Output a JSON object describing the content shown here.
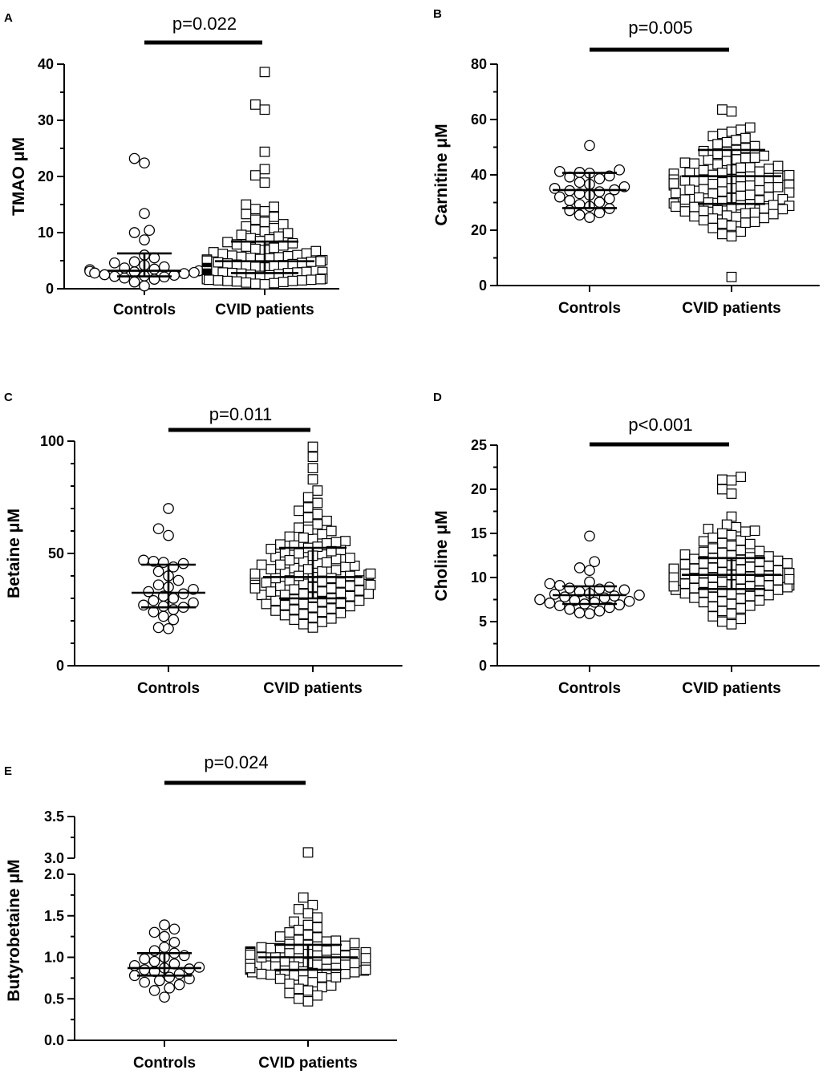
{
  "chart_data": [
    {
      "panel": "A",
      "type": "scatter",
      "title": "",
      "xlabel": "",
      "ylabel": "TMAO μM",
      "categories": [
        "Controls",
        "CVID patients"
      ],
      "ylim": [
        0,
        40
      ],
      "yticks": [
        0,
        10,
        20,
        30,
        40
      ],
      "ytick_labels": [
        "0",
        "10",
        "20",
        "30",
        "40"
      ],
      "p_value": "p=0.022",
      "series": [
        {
          "name": "Controls",
          "marker": "circle",
          "summary": {
            "median": 3.2,
            "q1": 2.2,
            "q3": 6.3
          },
          "values": [
            23.2,
            22.4,
            13.4,
            10.4,
            10.0,
            8.7,
            6.0,
            5.5,
            4.8,
            4.6,
            4.2,
            3.9,
            3.7,
            3.5,
            3.4,
            3.2,
            3.1,
            3.0,
            2.9,
            2.8,
            2.7,
            2.5,
            2.4,
            2.3,
            2.2,
            2.1,
            1.9,
            1.7,
            1.2,
            0.5
          ]
        },
        {
          "name": "CVID patients",
          "marker": "square",
          "summary": {
            "median": 4.9,
            "q1": 2.8,
            "q3": 8.4
          },
          "values": [
            38.6,
            32.8,
            31.9,
            24.4,
            21.3,
            20.2,
            18.9,
            15.0,
            14.6,
            14.2,
            13.8,
            13.3,
            12.8,
            12.3,
            11.9,
            11.5,
            11.1,
            10.8,
            10.5,
            10.2,
            9.9,
            9.6,
            9.3,
            9.0,
            8.8,
            8.5,
            8.3,
            8.1,
            7.9,
            7.7,
            7.5,
            7.3,
            7.1,
            6.9,
            6.7,
            6.5,
            6.3,
            6.2,
            6.0,
            5.9,
            5.8,
            5.7,
            5.6,
            5.5,
            5.4,
            5.3,
            5.2,
            5.1,
            5.0,
            4.9,
            4.8,
            4.7,
            4.6,
            4.5,
            4.4,
            4.3,
            4.2,
            4.1,
            4.0,
            3.9,
            3.8,
            3.7,
            3.6,
            3.5,
            3.4,
            3.3,
            3.2,
            3.1,
            3.0,
            3.0,
            2.9,
            2.9,
            2.8,
            2.8,
            2.7,
            2.7,
            2.6,
            2.6,
            2.5,
            2.5,
            2.4,
            2.4,
            2.3,
            2.3,
            2.2,
            2.2,
            2.1,
            2.1,
            2.0,
            2.0,
            1.9,
            1.9,
            1.8,
            1.8,
            1.7,
            1.7,
            1.6,
            1.6,
            1.5,
            1.5,
            1.4,
            1.4,
            1.3,
            1.2,
            1.1,
            1.0,
            0.9,
            0.8
          ]
        }
      ]
    },
    {
      "panel": "B",
      "type": "scatter",
      "title": "",
      "xlabel": "",
      "ylabel": "Carnitine μM",
      "categories": [
        "Controls",
        "CVID patients"
      ],
      "ylim": [
        0,
        80
      ],
      "yticks": [
        0,
        20,
        40,
        60,
        80
      ],
      "ytick_labels": [
        "0",
        "20",
        "40",
        "60",
        "80"
      ],
      "p_value": "p=0.005",
      "series": [
        {
          "name": "Controls",
          "marker": "circle",
          "summary": {
            "median": 34.5,
            "q1": 28.0,
            "q3": 40.7
          },
          "values": [
            50.6,
            41.8,
            41.2,
            40.9,
            40.6,
            39.6,
            39.2,
            38.6,
            37.3,
            36.6,
            35.7,
            35.1,
            34.6,
            34.3,
            33.9,
            33.2,
            32.7,
            32.0,
            31.4,
            30.7,
            30.1,
            29.3,
            28.6,
            27.8,
            27.1,
            26.3,
            25.5,
            24.6
          ]
        },
        {
          "name": "CVID patients",
          "marker": "square",
          "summary": {
            "median": 39.5,
            "q1": 29.5,
            "q3": 49.0
          },
          "values": [
            63.6,
            62.9,
            57.1,
            56.3,
            55.6,
            54.8,
            54.0,
            53.3,
            52.6,
            51.8,
            51.1,
            50.4,
            49.7,
            49.0,
            48.3,
            47.6,
            46.9,
            46.2,
            45.6,
            45.0,
            44.4,
            43.8,
            43.2,
            42.7,
            42.2,
            41.7,
            41.2,
            40.8,
            40.4,
            40.0,
            39.7,
            39.4,
            39.1,
            38.8,
            38.5,
            38.2,
            37.9,
            37.6,
            37.3,
            37.0,
            36.7,
            36.4,
            36.1,
            35.8,
            35.5,
            35.2,
            34.8,
            34.4,
            34.0,
            33.6,
            33.2,
            32.8,
            32.4,
            32.0,
            31.6,
            31.2,
            30.8,
            30.4,
            30.0,
            29.7,
            29.4,
            29.1,
            28.8,
            28.5,
            28.2,
            27.9,
            27.6,
            27.2,
            26.8,
            26.3,
            25.8,
            25.3,
            24.8,
            24.2,
            23.6,
            23.0,
            22.4,
            21.6,
            20.8,
            19.5,
            18.6,
            17.8,
            3.1,
            45.4,
            42.6,
            38.3,
            36.2,
            34.6,
            31.8,
            29.0,
            27.0,
            25.0,
            48.6,
            46.1,
            44.1,
            41.9,
            39.9,
            37.8,
            35.6,
            33.4,
            31.1,
            28.4,
            26.1,
            24.4,
            22.7,
            40.7,
            38.9,
            36.9
          ]
        }
      ]
    },
    {
      "panel": "C",
      "type": "scatter",
      "title": "",
      "xlabel": "",
      "ylabel": "Betaine μM",
      "categories": [
        "Controls",
        "CVID patients"
      ],
      "ylim": [
        0,
        100
      ],
      "yticks": [
        0,
        50,
        100
      ],
      "ytick_labels": [
        "0",
        "50",
        "100"
      ],
      "p_value": "p=0.011",
      "series": [
        {
          "name": "Controls",
          "marker": "circle",
          "summary": {
            "median": 32.5,
            "q1": 26.0,
            "q3": 45.0
          },
          "values": [
            70.0,
            61.0,
            58.0,
            47.0,
            46.5,
            46.0,
            45.5,
            44.0,
            42.0,
            40.0,
            38.0,
            36.0,
            35.0,
            34.0,
            33.0,
            32.0,
            31.0,
            30.0,
            29.0,
            28.0,
            27.0,
            26.5,
            26.0,
            25.0,
            24.0,
            22.0,
            20.5,
            17.0,
            16.5
          ]
        },
        {
          "name": "CVID patients",
          "marker": "square",
          "summary": {
            "median": 39.5,
            "q1": 30.0,
            "q3": 52.5
          },
          "values": [
            97.5,
            93.0,
            88.0,
            83.0,
            78.0,
            75.0,
            72.5,
            70.5,
            69.0,
            67.5,
            66.0,
            64.5,
            63.0,
            61.5,
            60.0,
            58.5,
            57.5,
            56.5,
            55.5,
            54.5,
            53.5,
            52.5,
            51.5,
            50.5,
            49.5,
            48.5,
            47.5,
            46.5,
            45.5,
            44.5,
            43.5,
            42.5,
            41.5,
            40.5,
            39.5,
            38.5,
            37.5,
            36.5,
            35.5,
            34.5,
            33.5,
            32.5,
            31.5,
            30.5,
            29.5,
            28.5,
            27.5,
            26.5,
            25.5,
            24.5,
            23.5,
            22.5,
            21.5,
            20.5,
            19.5,
            18.5,
            17.0,
            55.0,
            51.0,
            47.0,
            43.0,
            39.0,
            35.0,
            31.0,
            27.0,
            23.0,
            53.0,
            49.0,
            45.0,
            41.0,
            37.0,
            33.0,
            29.0,
            25.0,
            21.0,
            60.5,
            57.0,
            44.0,
            40.0,
            36.0,
            32.0,
            28.0,
            24.0,
            50.0,
            42.0,
            38.0,
            34.0,
            30.0,
            26.0,
            46.0,
            54.0,
            48.0,
            41.0,
            35.5,
            31.5,
            27.5,
            39.0,
            37.0,
            33.0,
            43.0,
            29.0,
            52.0,
            45.0,
            40.0,
            36.0,
            32.0,
            38.0,
            34.5
          ]
        }
      ]
    },
    {
      "panel": "D",
      "type": "scatter",
      "title": "",
      "xlabel": "",
      "ylabel": "Choline μM",
      "categories": [
        "Controls",
        "CVID patients"
      ],
      "ylim": [
        0,
        25
      ],
      "yticks": [
        0,
        5,
        10,
        15,
        20,
        25
      ],
      "ytick_labels": [
        "0",
        "5",
        "10",
        "15",
        "20",
        "25"
      ],
      "p_value": "p<0.001",
      "series": [
        {
          "name": "Controls",
          "marker": "circle",
          "summary": {
            "median": 8.0,
            "q1": 7.0,
            "q3": 9.0
          },
          "values": [
            14.7,
            11.8,
            11.1,
            10.8,
            9.5,
            9.3,
            9.1,
            8.9,
            8.8,
            8.7,
            8.6,
            8.4,
            8.2,
            8.1,
            8.0,
            7.9,
            7.8,
            7.7,
            7.5,
            7.4,
            7.3,
            7.2,
            7.1,
            7.0,
            6.9,
            6.8,
            6.6,
            6.4,
            6.2,
            6.0,
            5.9
          ]
        },
        {
          "name": "CVID patients",
          "marker": "square",
          "summary": {
            "median": 10.3,
            "q1": 8.7,
            "q3": 12.2
          },
          "values": [
            21.4,
            21.1,
            21.0,
            20.0,
            19.5,
            16.9,
            16.0,
            15.7,
            15.5,
            15.3,
            15.0,
            14.8,
            14.5,
            14.2,
            13.9,
            13.6,
            13.3,
            13.0,
            12.8,
            12.6,
            12.4,
            12.2,
            12.0,
            11.8,
            11.6,
            11.4,
            11.2,
            11.0,
            10.9,
            10.8,
            10.7,
            10.6,
            10.5,
            10.4,
            10.3,
            10.2,
            10.1,
            10.0,
            9.9,
            9.8,
            9.7,
            9.6,
            9.5,
            9.4,
            9.3,
            9.2,
            9.1,
            9.0,
            8.9,
            8.8,
            8.7,
            8.6,
            8.4,
            8.2,
            8.0,
            7.8,
            7.6,
            7.4,
            7.2,
            7.0,
            6.8,
            6.5,
            6.2,
            5.9,
            5.6,
            5.3,
            5.0,
            4.7,
            12.5,
            11.9,
            11.3,
            10.6,
            10.1,
            9.6,
            9.1,
            8.5,
            7.9,
            7.3,
            6.7,
            12.1,
            11.5,
            10.9,
            10.4,
            9.9,
            9.4,
            8.9,
            8.3,
            7.7,
            13.1,
            11.7,
            11.1,
            10.7,
            10.2,
            9.7,
            9.2,
            8.6,
            14.1,
            12.9,
            11.0,
            10.0,
            9.0,
            15.2,
            13.8,
            12.3,
            10.5,
            9.8,
            8.1,
            11.6
          ]
        }
      ]
    },
    {
      "panel": "E",
      "type": "scatter",
      "title": "",
      "xlabel": "",
      "ylabel": "Butyrobetaine μM",
      "categories": [
        "Controls",
        "CVID patients"
      ],
      "ylim": [
        0,
        3.5
      ],
      "axis_break": [
        2.0,
        3.0
      ],
      "yticks": [
        0,
        0.5,
        1.0,
        1.5,
        2.0,
        3.0,
        3.5
      ],
      "ytick_labels": [
        "0.0",
        "0.5",
        "1.0",
        "1.5",
        "2.0",
        "3.0",
        "3.5"
      ],
      "p_value": "p=0.024",
      "series": [
        {
          "name": "Controls",
          "marker": "circle",
          "summary": {
            "median": 0.87,
            "q1": 0.78,
            "q3": 1.05
          },
          "values": [
            1.39,
            1.34,
            1.3,
            1.25,
            1.18,
            1.12,
            1.08,
            1.05,
            1.02,
            1.0,
            0.98,
            0.95,
            0.92,
            0.9,
            0.88,
            0.87,
            0.86,
            0.85,
            0.83,
            0.8,
            0.78,
            0.76,
            0.74,
            0.72,
            0.7,
            0.67,
            0.63,
            0.6,
            0.52
          ]
        },
        {
          "name": "CVID patients",
          "marker": "square",
          "summary": {
            "median": 1.0,
            "q1": 0.85,
            "q3": 1.15
          },
          "values": [
            3.07,
            1.72,
            1.63,
            1.58,
            1.53,
            1.48,
            1.43,
            1.39,
            1.36,
            1.33,
            1.3,
            1.27,
            1.24,
            1.21,
            1.19,
            1.17,
            1.15,
            1.13,
            1.11,
            1.09,
            1.07,
            1.06,
            1.05,
            1.04,
            1.03,
            1.02,
            1.01,
            1.0,
            0.99,
            0.98,
            0.97,
            0.96,
            0.95,
            0.94,
            0.93,
            0.92,
            0.91,
            0.9,
            0.89,
            0.88,
            0.87,
            0.86,
            0.85,
            0.84,
            0.83,
            0.82,
            0.81,
            0.8,
            0.78,
            0.76,
            0.74,
            0.72,
            0.7,
            0.68,
            0.66,
            0.64,
            0.62,
            0.6,
            0.57,
            0.54,
            0.5,
            0.47,
            1.12,
            1.08,
            1.04,
            1.0,
            0.96,
            0.92,
            0.88,
            0.84,
            0.8,
            0.76,
            1.14,
            1.1,
            1.06,
            1.02,
            0.98,
            0.94,
            0.9,
            0.86,
            0.82,
            1.16,
            1.01,
            0.97,
            0.93,
            0.89,
            1.2,
            1.05,
            0.99,
            0.95,
            0.91,
            0.87,
            0.79,
            1.25,
            1.11,
            1.03,
            0.85
          ]
        }
      ]
    }
  ]
}
